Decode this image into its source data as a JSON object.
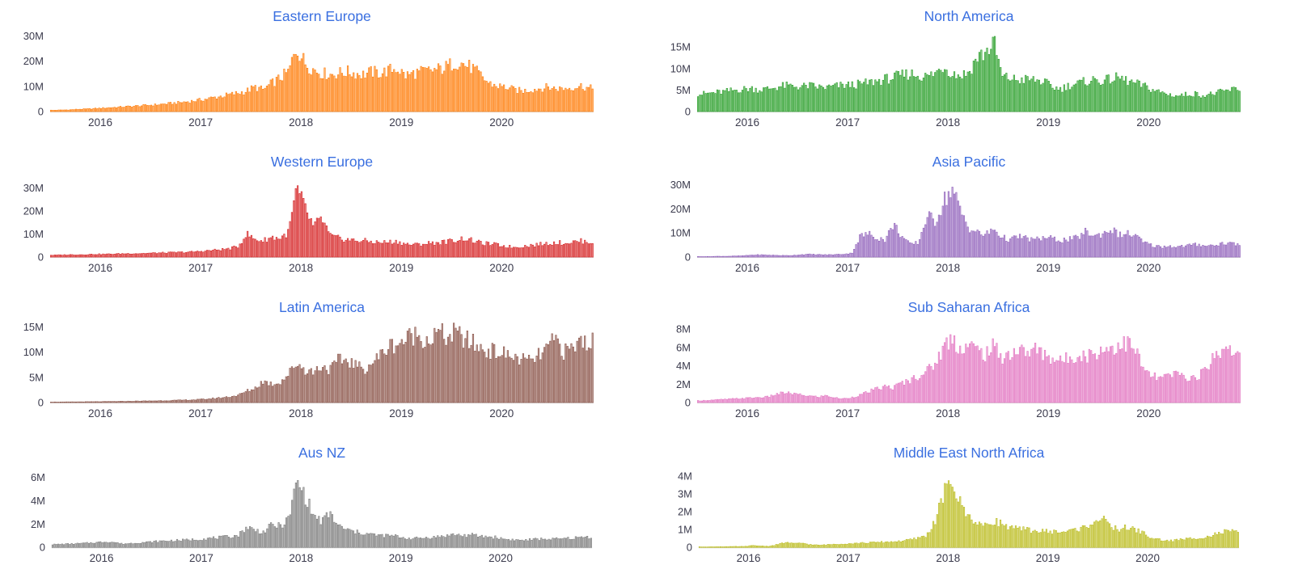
{
  "page": {
    "background": "#ffffff",
    "title_color": "#3a6fe0",
    "axis_label_color": "#3b3b4d",
    "baseline_color": "#d8d8d8"
  },
  "chart_defaults": {
    "x_ticks": [
      "2016",
      "2017",
      "2018",
      "2019",
      "2020"
    ],
    "x_tick_month_indices": [
      6,
      18,
      30,
      42,
      54
    ],
    "x_domain_start": "2015-07",
    "x_domain_end": "2020-11",
    "months_total": 65,
    "weeks_total": 282,
    "bar_fill_opacity": 0.45,
    "grid": "off",
    "legend": "none",
    "value_unit": "M"
  },
  "chart_data": [
    {
      "type": "bar",
      "title": "Eastern Europe",
      "color": "#ff7f0e",
      "ylabel": "",
      "xlabel": "",
      "ylim": [
        0,
        32
      ],
      "y_ticks": [
        "0",
        "10M",
        "20M",
        "30M"
      ],
      "y_tick_values": [
        0,
        10,
        20,
        30
      ],
      "x": "weekly, Jul 2015 - Nov 2020",
      "monthly_values_millions": [
        0.5,
        0.6,
        0.7,
        0.9,
        1.0,
        1.2,
        1.4,
        1.6,
        1.8,
        2.0,
        2.2,
        2.4,
        2.6,
        2.9,
        3.2,
        3.5,
        3.9,
        4.3,
        4.8,
        5.4,
        6.0,
        6.6,
        7.2,
        8.0,
        9.5,
        8.5,
        11.0,
        13.0,
        15.5,
        25.0,
        19.0,
        16.5,
        15.0,
        14.5,
        15.0,
        15.5,
        15.0,
        14.5,
        15.5,
        15.0,
        16.0,
        17.0,
        14.0,
        15.0,
        15.5,
        16.0,
        16.5,
        17.5,
        19.5,
        18.5,
        17.0,
        14.0,
        11.0,
        10.0,
        9.5,
        8.5,
        8.0,
        8.5,
        9.0,
        9.5,
        9.0,
        9.0,
        9.5,
        10.0,
        9.0
      ]
    },
    {
      "type": "bar",
      "title": "North America",
      "color": "#2ca02c",
      "ylabel": "",
      "xlabel": "",
      "ylim": [
        0,
        18.8
      ],
      "y_ticks": [
        "0",
        "5M",
        "10M",
        "15M"
      ],
      "y_tick_values": [
        0,
        5,
        10,
        15
      ],
      "x": "weekly, Jul 2015 - Nov 2020",
      "monthly_values_millions": [
        4.0,
        4.2,
        4.4,
        4.6,
        4.9,
        5.1,
        5.3,
        5.0,
        5.2,
        5.6,
        5.9,
        5.8,
        5.7,
        5.9,
        5.6,
        5.5,
        5.8,
        6.0,
        6.1,
        6.3,
        6.6,
        7.0,
        7.4,
        7.8,
        8.3,
        8.7,
        8.3,
        8.0,
        8.8,
        10.5,
        8.8,
        8.3,
        9.0,
        12.5,
        13.5,
        16.0,
        8.0,
        7.6,
        7.2,
        7.4,
        7.2,
        6.8,
        5.6,
        5.2,
        6.0,
        6.4,
        6.9,
        7.3,
        7.0,
        7.4,
        7.8,
        7.0,
        6.4,
        5.8,
        5.0,
        4.4,
        3.9,
        3.6,
        3.9,
        4.1,
        3.7,
        4.0,
        4.4,
        4.8,
        5.2
      ]
    },
    {
      "type": "bar",
      "title": "Western Europe",
      "color": "#d62728",
      "ylabel": "",
      "xlabel": "",
      "ylim": [
        0,
        35
      ],
      "y_ticks": [
        "0",
        "10M",
        "20M",
        "30M"
      ],
      "y_tick_values": [
        0,
        10,
        20,
        30
      ],
      "x": "weekly, Jul 2015 - Nov 2020",
      "monthly_values_millions": [
        0.8,
        0.9,
        1.0,
        1.0,
        1.1,
        1.2,
        1.2,
        1.3,
        1.4,
        1.5,
        1.5,
        1.6,
        1.7,
        1.8,
        1.9,
        2.0,
        2.1,
        2.3,
        2.6,
        2.9,
        3.2,
        3.6,
        4.5,
        10.0,
        7.5,
        7.0,
        8.5,
        8.0,
        10.5,
        29.0,
        21.0,
        13.0,
        16.5,
        9.0,
        8.0,
        7.5,
        7.0,
        7.0,
        6.5,
        6.2,
        6.4,
        6.6,
        5.6,
        5.2,
        5.6,
        6.0,
        6.2,
        6.6,
        7.2,
        8.0,
        7.0,
        6.0,
        5.6,
        5.2,
        4.6,
        4.2,
        4.6,
        5.0,
        5.4,
        5.8,
        6.2,
        6.0,
        6.4,
        6.8,
        6.4
      ]
    },
    {
      "type": "bar",
      "title": "Asia Pacific",
      "color": "#9467bd",
      "ylabel": "",
      "xlabel": "",
      "ylim": [
        0,
        33.5
      ],
      "y_ticks": [
        "0",
        "10M",
        "20M",
        "30M"
      ],
      "y_tick_values": [
        0,
        10,
        20,
        30
      ],
      "x": "weekly, Jul 2015 - Nov 2020",
      "monthly_values_millions": [
        0.2,
        0.2,
        0.3,
        0.3,
        0.4,
        0.5,
        0.8,
        0.9,
        0.8,
        0.7,
        0.6,
        0.7,
        1.0,
        1.1,
        1.0,
        0.9,
        1.0,
        1.2,
        1.5,
        8.5,
        9.5,
        8.0,
        7.0,
        13.5,
        8.5,
        5.0,
        6.0,
        17.0,
        14.5,
        23.0,
        28.0,
        19.0,
        12.0,
        10.0,
        9.0,
        11.5,
        8.0,
        7.0,
        8.5,
        7.5,
        7.0,
        8.0,
        7.5,
        6.8,
        7.2,
        7.8,
        10.5,
        8.5,
        9.5,
        11.5,
        9.0,
        9.5,
        8.5,
        5.8,
        4.6,
        4.2,
        4.5,
        4.2,
        4.6,
        5.0,
        5.0,
        4.6,
        5.4,
        5.8,
        5.2
      ]
    },
    {
      "type": "bar",
      "title": "Latin America",
      "color": "#8c564b",
      "ylabel": "",
      "xlabel": "",
      "ylim": [
        0,
        16
      ],
      "y_ticks": [
        "0",
        "5M",
        "10M",
        "15M"
      ],
      "y_tick_values": [
        0,
        5,
        10,
        15
      ],
      "x": "weekly, Jul 2015 - Nov 2020",
      "monthly_values_millions": [
        0.1,
        0.1,
        0.12,
        0.13,
        0.15,
        0.16,
        0.18,
        0.2,
        0.22,
        0.25,
        0.28,
        0.3,
        0.33,
        0.36,
        0.4,
        0.45,
        0.5,
        0.55,
        0.65,
        0.8,
        0.95,
        1.15,
        1.4,
        2.2,
        2.8,
        4.2,
        3.6,
        4.0,
        5.5,
        7.8,
        6.4,
        6.0,
        7.2,
        6.4,
        8.2,
        8.3,
        7.4,
        6.4,
        7.8,
        9.2,
        11.0,
        11.6,
        12.2,
        13.4,
        12.8,
        12.2,
        13.8,
        12.6,
        13.6,
        12.4,
        11.6,
        10.6,
        10.2,
        9.8,
        9.4,
        8.8,
        8.4,
        8.0,
        9.2,
        10.6,
        12.4,
        9.8,
        10.6,
        12.2,
        11.8
      ]
    },
    {
      "type": "bar",
      "title": "Sub Saharan Africa",
      "color": "#e377c2",
      "ylabel": "",
      "xlabel": "",
      "ylim": [
        0,
        8.8
      ],
      "y_ticks": [
        "0",
        "2M",
        "4M",
        "6M",
        "8M"
      ],
      "y_tick_values": [
        0,
        2,
        4,
        6,
        8
      ],
      "x": "weekly, Jul 2015 - Nov 2020",
      "monthly_values_millions": [
        0.2,
        0.25,
        0.3,
        0.35,
        0.4,
        0.45,
        0.5,
        0.55,
        0.6,
        0.9,
        1.05,
        0.95,
        0.8,
        0.7,
        0.6,
        0.75,
        0.5,
        0.4,
        0.55,
        0.8,
        1.15,
        1.45,
        1.7,
        1.6,
        2.1,
        2.4,
        2.9,
        3.4,
        4.2,
        6.0,
        7.0,
        5.8,
        6.2,
        5.6,
        5.2,
        6.0,
        4.9,
        5.3,
        5.6,
        5.4,
        5.7,
        5.2,
        4.8,
        4.4,
        4.8,
        5.2,
        5.0,
        5.3,
        5.7,
        5.9,
        6.2,
        6.4,
        5.5,
        3.4,
        2.8,
        2.6,
        2.9,
        3.1,
        2.7,
        2.6,
        3.2,
        4.6,
        5.4,
        6.4,
        5.0
      ]
    },
    {
      "type": "bar",
      "title": "Aus NZ",
      "color": "#7f7f7f",
      "ylabel": "",
      "xlabel": "",
      "ylim": [
        0,
        6.9
      ],
      "y_ticks": [
        "0",
        "2M",
        "4M",
        "6M"
      ],
      "y_tick_values": [
        0,
        2,
        4,
        6
      ],
      "x": "weekly, Jul 2015 - Nov 2020",
      "monthly_values_millions": [
        0.25,
        0.28,
        0.3,
        0.33,
        0.38,
        0.42,
        0.48,
        0.44,
        0.3,
        0.34,
        0.4,
        0.44,
        0.5,
        0.54,
        0.58,
        0.6,
        0.64,
        0.68,
        0.74,
        0.8,
        0.85,
        0.92,
        1.05,
        1.75,
        1.45,
        1.3,
        1.9,
        1.8,
        2.4,
        5.6,
        4.4,
        2.7,
        2.2,
        2.9,
        1.8,
        1.5,
        1.3,
        1.2,
        1.1,
        1.0,
        1.0,
        0.95,
        0.8,
        0.75,
        0.8,
        0.85,
        0.9,
        1.0,
        1.1,
        1.0,
        1.05,
        0.95,
        0.9,
        0.85,
        0.7,
        0.65,
        0.6,
        0.65,
        0.7,
        0.72,
        0.7,
        0.74,
        0.78,
        0.84,
        0.88
      ]
    },
    {
      "type": "bar",
      "title": "Middle East North Africa",
      "color": "#bcbd22",
      "ylabel": "",
      "xlabel": "",
      "ylim": [
        0,
        4.5
      ],
      "y_ticks": [
        "0",
        "1M",
        "2M",
        "3M",
        "4M"
      ],
      "y_tick_values": [
        0,
        1,
        2,
        3,
        4
      ],
      "x": "weekly, Jul 2015 - Nov 2020",
      "monthly_values_millions": [
        0.03,
        0.03,
        0.04,
        0.04,
        0.05,
        0.05,
        0.1,
        0.08,
        0.06,
        0.16,
        0.28,
        0.2,
        0.24,
        0.15,
        0.12,
        0.15,
        0.18,
        0.2,
        0.22,
        0.24,
        0.26,
        0.28,
        0.3,
        0.32,
        0.36,
        0.42,
        0.52,
        0.7,
        1.5,
        3.0,
        3.6,
        2.4,
        1.7,
        1.4,
        1.15,
        1.5,
        1.3,
        1.1,
        1.0,
        0.98,
        0.92,
        0.88,
        0.88,
        0.84,
        0.9,
        1.0,
        1.1,
        1.45,
        1.6,
        1.15,
        1.0,
        1.1,
        0.98,
        0.8,
        0.5,
        0.42,
        0.36,
        0.4,
        0.46,
        0.5,
        0.56,
        0.62,
        0.78,
        0.88,
        0.84
      ]
    }
  ]
}
